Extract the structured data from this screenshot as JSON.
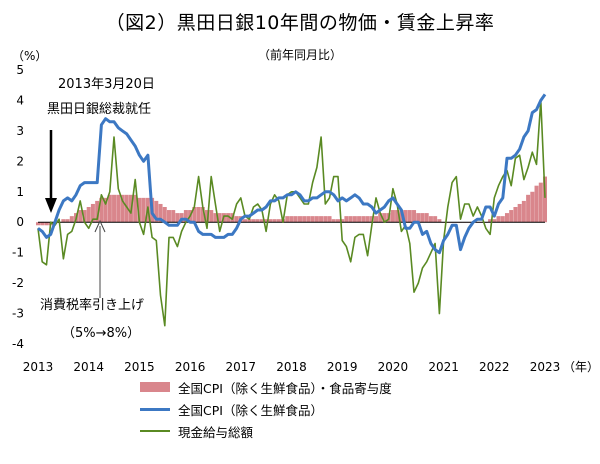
{
  "chart_data": {
    "type": "line",
    "title": "（図2）黒田日銀10年間の物価・賃金上昇率",
    "subtitle": "（前年同月比）",
    "ylabel": "（%）",
    "xunit": "（年）",
    "ylim": [
      -4,
      5
    ],
    "yticks": [
      "5",
      "4",
      "3",
      "2",
      "1",
      "0",
      "-1",
      "-2",
      "-3",
      "-4"
    ],
    "xticks": [
      "2013",
      "2014",
      "2015",
      "2016",
      "2017",
      "2018",
      "2019",
      "2020",
      "2021",
      "2022",
      "2023"
    ],
    "annotations": {
      "kuroda_date": "2013年3月20日",
      "kuroda_label": "黒田日銀総裁就任",
      "tax_label": "消費税率引き上げ",
      "tax_detail": "（5%→8%）"
    },
    "series": [
      {
        "name": "全国CPI（除く生鮮食品）・食品寄与度",
        "type": "bar",
        "color": "#d9868c",
        "x": [
          2013.0,
          2013.083,
          2013.167,
          2013.25,
          2013.333,
          2013.417,
          2013.5,
          2013.583,
          2013.667,
          2013.75,
          2013.833,
          2013.917,
          2014.0,
          2014.083,
          2014.167,
          2014.25,
          2014.333,
          2014.417,
          2014.5,
          2014.583,
          2014.667,
          2014.75,
          2014.833,
          2014.917,
          2015.0,
          2015.083,
          2015.167,
          2015.25,
          2015.333,
          2015.417,
          2015.5,
          2015.583,
          2015.667,
          2015.75,
          2015.833,
          2015.917,
          2016.0,
          2016.083,
          2016.167,
          2016.25,
          2016.333,
          2016.417,
          2016.5,
          2016.583,
          2016.667,
          2016.75,
          2016.833,
          2016.917,
          2017.0,
          2017.083,
          2017.167,
          2017.25,
          2017.333,
          2017.417,
          2017.5,
          2017.583,
          2017.667,
          2017.75,
          2017.833,
          2017.917,
          2018.0,
          2018.083,
          2018.167,
          2018.25,
          2018.333,
          2018.417,
          2018.5,
          2018.583,
          2018.667,
          2018.75,
          2018.833,
          2018.917,
          2019.0,
          2019.083,
          2019.167,
          2019.25,
          2019.333,
          2019.417,
          2019.5,
          2019.583,
          2019.667,
          2019.75,
          2019.833,
          2019.917,
          2020.0,
          2020.083,
          2020.167,
          2020.25,
          2020.333,
          2020.417,
          2020.5,
          2020.583,
          2020.667,
          2020.75,
          2020.833,
          2020.917,
          2021.0,
          2021.083,
          2021.167,
          2021.25,
          2021.333,
          2021.417,
          2021.5,
          2021.583,
          2021.667,
          2021.75,
          2021.833,
          2021.917,
          2022.0,
          2022.083,
          2022.167,
          2022.25,
          2022.333,
          2022.417,
          2022.5,
          2022.583,
          2022.667,
          2022.75,
          2022.833,
          2022.917,
          2023.0
        ],
        "values": [
          -0.1,
          -0.1,
          -0.1,
          -0.1,
          0.0,
          0.0,
          0.1,
          0.1,
          0.2,
          0.3,
          0.4,
          0.4,
          0.5,
          0.6,
          0.7,
          0.8,
          0.8,
          0.9,
          0.9,
          0.9,
          0.9,
          0.9,
          0.9,
          0.9,
          0.8,
          0.8,
          0.8,
          0.8,
          0.7,
          0.6,
          0.5,
          0.4,
          0.4,
          0.3,
          0.3,
          0.4,
          0.4,
          0.5,
          0.5,
          0.5,
          0.4,
          0.4,
          0.3,
          0.3,
          0.3,
          0.3,
          0.3,
          0.2,
          0.2,
          0.1,
          0.1,
          0.1,
          0.1,
          0.1,
          0.1,
          0.1,
          0.1,
          0.1,
          0.1,
          0.2,
          0.2,
          0.2,
          0.2,
          0.2,
          0.2,
          0.2,
          0.2,
          0.2,
          0.2,
          0.2,
          0.1,
          0.1,
          0.1,
          0.2,
          0.2,
          0.2,
          0.2,
          0.2,
          0.2,
          0.2,
          0.2,
          0.3,
          0.3,
          0.3,
          0.4,
          0.4,
          0.4,
          0.4,
          0.4,
          0.4,
          0.3,
          0.3,
          0.3,
          0.2,
          0.2,
          0.1,
          0.0,
          0.0,
          0.0,
          0.0,
          0.0,
          0.0,
          0.0,
          0.0,
          0.0,
          0.0,
          0.0,
          0.1,
          0.1,
          0.2,
          0.2,
          0.3,
          0.4,
          0.5,
          0.6,
          0.7,
          0.9,
          1.0,
          1.2,
          1.3,
          1.5
        ]
      },
      {
        "name": "全国CPI（除く生鮮食品）",
        "type": "line",
        "color": "#3c78c3",
        "x": [
          2013.0,
          2013.083,
          2013.167,
          2013.25,
          2013.333,
          2013.417,
          2013.5,
          2013.583,
          2013.667,
          2013.75,
          2013.833,
          2013.917,
          2014.0,
          2014.083,
          2014.167,
          2014.25,
          2014.333,
          2014.417,
          2014.5,
          2014.583,
          2014.667,
          2014.75,
          2014.833,
          2014.917,
          2015.0,
          2015.083,
          2015.167,
          2015.25,
          2015.333,
          2015.417,
          2015.5,
          2015.583,
          2015.667,
          2015.75,
          2015.833,
          2015.917,
          2016.0,
          2016.083,
          2016.167,
          2016.25,
          2016.333,
          2016.417,
          2016.5,
          2016.583,
          2016.667,
          2016.75,
          2016.833,
          2016.917,
          2017.0,
          2017.083,
          2017.167,
          2017.25,
          2017.333,
          2017.417,
          2017.5,
          2017.583,
          2017.667,
          2017.75,
          2017.833,
          2017.917,
          2018.0,
          2018.083,
          2018.167,
          2018.25,
          2018.333,
          2018.417,
          2018.5,
          2018.583,
          2018.667,
          2018.75,
          2018.833,
          2018.917,
          2019.0,
          2019.083,
          2019.167,
          2019.25,
          2019.333,
          2019.417,
          2019.5,
          2019.583,
          2019.667,
          2019.75,
          2019.833,
          2019.917,
          2020.0,
          2020.083,
          2020.167,
          2020.25,
          2020.333,
          2020.417,
          2020.5,
          2020.583,
          2020.667,
          2020.75,
          2020.833,
          2020.917,
          2021.0,
          2021.083,
          2021.167,
          2021.25,
          2021.333,
          2021.417,
          2021.5,
          2021.583,
          2021.667,
          2021.75,
          2021.833,
          2021.917,
          2022.0,
          2022.083,
          2022.167,
          2022.25,
          2022.333,
          2022.417,
          2022.5,
          2022.583,
          2022.667,
          2022.75,
          2022.833,
          2022.917,
          2023.0
        ],
        "values": [
          -0.2,
          -0.3,
          -0.5,
          -0.4,
          0.0,
          0.4,
          0.7,
          0.8,
          0.7,
          0.9,
          1.2,
          1.3,
          1.3,
          1.3,
          1.3,
          3.2,
          3.4,
          3.3,
          3.3,
          3.1,
          3.0,
          2.9,
          2.7,
          2.5,
          2.2,
          2.0,
          2.2,
          0.3,
          0.1,
          0.1,
          0.0,
          -0.1,
          -0.1,
          -0.1,
          0.1,
          0.1,
          0.0,
          0.0,
          -0.3,
          -0.4,
          -0.4,
          -0.4,
          -0.5,
          -0.5,
          -0.5,
          -0.4,
          -0.4,
          -0.2,
          0.1,
          0.2,
          0.2,
          0.3,
          0.4,
          0.4,
          0.5,
          0.7,
          0.7,
          0.8,
          0.8,
          0.9,
          0.9,
          1.0,
          0.9,
          0.7,
          0.7,
          0.8,
          0.8,
          0.9,
          1.0,
          1.0,
          0.9,
          0.7,
          0.8,
          0.7,
          0.8,
          0.9,
          0.8,
          0.6,
          0.6,
          0.5,
          0.3,
          0.4,
          0.5,
          0.7,
          0.8,
          0.6,
          0.4,
          -0.2,
          -0.2,
          0.0,
          0.0,
          -0.4,
          -0.3,
          -0.7,
          -0.9,
          -1.0,
          -0.6,
          -0.4,
          -0.1,
          -0.1,
          -0.9,
          -0.5,
          -0.2,
          0.0,
          0.1,
          0.1,
          0.5,
          0.5,
          0.2,
          0.6,
          0.8,
          2.1,
          2.1,
          2.2,
          2.4,
          2.8,
          3.0,
          3.6,
          3.7,
          4.0,
          4.2
        ]
      },
      {
        "name": "現金給与総額",
        "type": "line",
        "color": "#5a8a23",
        "x": [
          2013.0,
          2013.083,
          2013.167,
          2013.25,
          2013.333,
          2013.417,
          2013.5,
          2013.583,
          2013.667,
          2013.75,
          2013.833,
          2013.917,
          2014.0,
          2014.083,
          2014.167,
          2014.25,
          2014.333,
          2014.417,
          2014.5,
          2014.583,
          2014.667,
          2014.75,
          2014.833,
          2014.917,
          2015.0,
          2015.083,
          2015.167,
          2015.25,
          2015.333,
          2015.417,
          2015.5,
          2015.583,
          2015.667,
          2015.75,
          2015.833,
          2015.917,
          2016.0,
          2016.083,
          2016.167,
          2016.25,
          2016.333,
          2016.417,
          2016.5,
          2016.583,
          2016.667,
          2016.75,
          2016.833,
          2016.917,
          2017.0,
          2017.083,
          2017.167,
          2017.25,
          2017.333,
          2017.417,
          2017.5,
          2017.583,
          2017.667,
          2017.75,
          2017.833,
          2017.917,
          2018.0,
          2018.083,
          2018.167,
          2018.25,
          2018.333,
          2018.417,
          2018.5,
          2018.583,
          2018.667,
          2018.75,
          2018.833,
          2018.917,
          2019.0,
          2019.083,
          2019.167,
          2019.25,
          2019.333,
          2019.417,
          2019.5,
          2019.583,
          2019.667,
          2019.75,
          2019.833,
          2019.917,
          2020.0,
          2020.083,
          2020.167,
          2020.25,
          2020.333,
          2020.417,
          2020.5,
          2020.583,
          2020.667,
          2020.75,
          2020.833,
          2020.917,
          2021.0,
          2021.083,
          2021.167,
          2021.25,
          2021.333,
          2021.417,
          2021.5,
          2021.583,
          2021.667,
          2021.75,
          2021.833,
          2021.917,
          2022.0,
          2022.083,
          2022.167,
          2022.25,
          2022.333,
          2022.417,
          2022.5,
          2022.583,
          2022.667,
          2022.75,
          2022.833,
          2022.917,
          2023.0
        ],
        "values": [
          -0.2,
          -1.3,
          -1.4,
          0.0,
          -0.1,
          0.1,
          -1.2,
          -0.4,
          -0.3,
          0.1,
          0.7,
          0.0,
          -0.2,
          0.1,
          0.1,
          0.9,
          0.6,
          1.0,
          2.8,
          1.1,
          0.7,
          0.5,
          0.3,
          1.4,
          0.0,
          -0.4,
          0.5,
          -0.5,
          -0.6,
          -2.4,
          -3.4,
          -0.5,
          -0.5,
          -0.8,
          -0.3,
          0.0,
          0.2,
          0.5,
          1.5,
          0.5,
          -0.2,
          1.5,
          0.6,
          -0.3,
          0.2,
          0.2,
          0.1,
          0.6,
          0.8,
          0.2,
          0.1,
          0.5,
          0.6,
          0.4,
          -0.3,
          0.6,
          0.9,
          0.7,
          0.0,
          0.9,
          1.0,
          1.0,
          0.8,
          0.6,
          0.6,
          1.3,
          1.8,
          2.8,
          0.6,
          0.8,
          1.5,
          1.5,
          -0.6,
          -0.8,
          -1.3,
          -0.5,
          -0.4,
          -0.4,
          -1.1,
          -0.1,
          0.8,
          0.3,
          0.0,
          0.1,
          1.1,
          0.6,
          -0.3,
          -0.1,
          -0.7,
          -2.3,
          -2.0,
          -1.5,
          -1.3,
          -1.0,
          -0.7,
          -3.0,
          -0.6,
          0.5,
          1.3,
          1.5,
          0.1,
          0.6,
          0.6,
          0.2,
          0.5,
          0.2,
          -0.2,
          -0.4,
          0.8,
          1.2,
          1.5,
          1.7,
          1.2,
          2.1,
          2.2,
          1.4,
          1.8,
          2.3,
          1.9,
          4.0,
          0.8
        ]
      }
    ]
  }
}
